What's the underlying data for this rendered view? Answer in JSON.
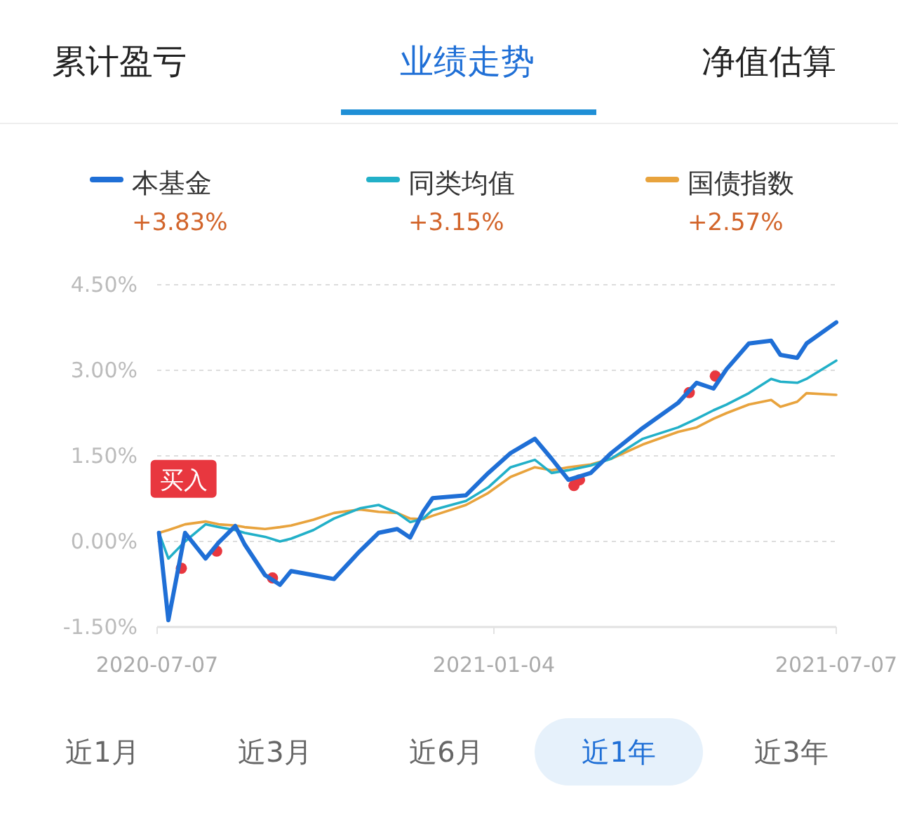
{
  "chart_data": {
    "type": "line",
    "x": [
      "2020-07-08",
      "2020-07-13",
      "2020-07-22",
      "2020-08-02",
      "2020-08-09",
      "2020-08-18",
      "2020-08-23",
      "2020-09-03",
      "2020-09-11",
      "2020-09-17",
      "2020-09-29",
      "2020-10-10",
      "2020-10-24",
      "2020-11-03",
      "2020-11-13",
      "2020-11-20",
      "2020-11-27",
      "2020-12-02",
      "2020-12-20",
      "2021-01-01",
      "2021-01-13",
      "2021-01-26",
      "2021-02-04",
      "2021-02-13",
      "2021-02-25",
      "2021-03-08",
      "2021-03-25",
      "2021-04-13",
      "2021-04-23",
      "2021-05-02",
      "2021-05-09",
      "2021-05-21",
      "2021-06-02",
      "2021-06-07",
      "2021-06-16",
      "2021-06-21",
      "2021-07-07"
    ],
    "series": [
      {
        "name": "本基金",
        "color": "#1f6fd6",
        "values": [
          0.15,
          -1.38,
          0.15,
          -0.3,
          -0.02,
          0.27,
          -0.05,
          -0.59,
          -0.76,
          -0.52,
          -0.59,
          -0.66,
          -0.17,
          0.15,
          0.22,
          0.07,
          0.52,
          0.76,
          0.81,
          1.2,
          1.55,
          1.8,
          1.45,
          1.08,
          1.2,
          1.55,
          1.99,
          2.43,
          2.78,
          2.68,
          3.02,
          3.47,
          3.52,
          3.27,
          3.22,
          3.47,
          3.84
        ]
      },
      {
        "name": "同类均值",
        "color": "#22b0c8",
        "values": [
          0.15,
          -0.3,
          0.0,
          0.3,
          0.25,
          0.2,
          0.15,
          0.08,
          0.0,
          0.05,
          0.2,
          0.4,
          0.58,
          0.64,
          0.5,
          0.34,
          0.4,
          0.55,
          0.71,
          0.95,
          1.3,
          1.43,
          1.2,
          1.25,
          1.33,
          1.45,
          1.8,
          2.0,
          2.15,
          2.3,
          2.4,
          2.6,
          2.85,
          2.8,
          2.78,
          2.85,
          3.17
        ]
      },
      {
        "name": "国债指数",
        "color": "#e8a33d",
        "values": [
          0.15,
          0.2,
          0.3,
          0.35,
          0.3,
          0.28,
          0.25,
          0.22,
          0.25,
          0.28,
          0.38,
          0.5,
          0.56,
          0.52,
          0.5,
          0.4,
          0.39,
          0.45,
          0.64,
          0.85,
          1.13,
          1.3,
          1.25,
          1.3,
          1.35,
          1.45,
          1.7,
          1.92,
          2.0,
          2.15,
          2.25,
          2.4,
          2.48,
          2.36,
          2.45,
          2.6,
          2.57
        ]
      },
      {
        "type": "scatter",
        "marker": "circle",
        "color": "#e8373f",
        "x": [
          "2020-07-20",
          "2020-08-08",
          "2020-09-07",
          "2021-02-16",
          "2021-02-19",
          "2021-04-19",
          "2021-05-03"
        ],
        "values": [
          -0.47,
          -0.17,
          -0.64,
          0.98,
          1.08,
          2.61,
          2.9
        ]
      }
    ],
    "title": "业绩走势",
    "annotations": [
      "累计盈亏",
      "净值估算",
      "+3.83%",
      "+3.15%",
      "+2.57%",
      "近1月",
      "近3月",
      "近6月",
      "近1年",
      "近3年",
      {
        "text": "买入",
        "x": "2020-07-08",
        "y": 0.15
      }
    ],
    "xlim": [
      "2020-07-07",
      "2021-07-07"
    ],
    "xticks": [
      "2020-07-07",
      "2021-01-04",
      "2021-07-07"
    ],
    "ylim": [
      -1.5,
      4.5
    ],
    "yticks": [
      {
        "value": -1.5,
        "label": "-1.50%"
      },
      {
        "value": 0,
        "label": "0.00%"
      },
      {
        "value": 1.5,
        "label": "1.50%"
      },
      {
        "value": 3,
        "label": "3.00%"
      },
      {
        "value": 4.5,
        "label": "4.50%"
      }
    ],
    "grid": "y",
    "legend": "top",
    "marker": "none",
    "line_style": "solid"
  }
}
